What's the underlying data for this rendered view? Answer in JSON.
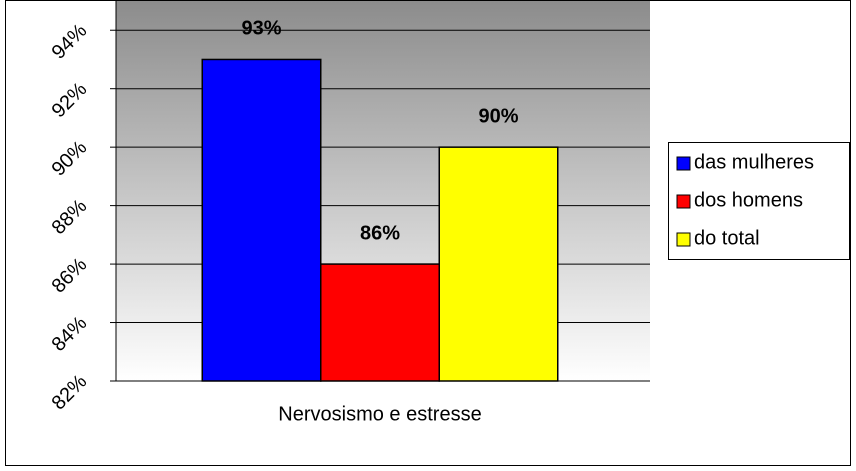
{
  "chart_data": {
    "type": "bar",
    "categories": [
      "Nervosismo e estresse"
    ],
    "series": [
      {
        "name": "das mulheres",
        "color": "#0000ff",
        "values": [
          93
        ],
        "value_labels": [
          "93%"
        ]
      },
      {
        "name": "dos homens",
        "color": "#ff0000",
        "values": [
          86
        ],
        "value_labels": [
          "86%"
        ]
      },
      {
        "name": "do total",
        "color": "#ffff00",
        "values": [
          90
        ],
        "value_labels": [
          "90%"
        ]
      }
    ],
    "ylim": [
      82,
      95
    ],
    "yticks": [
      {
        "value": 82,
        "label": "82%"
      },
      {
        "value": 84,
        "label": "84%"
      },
      {
        "value": 86,
        "label": "86%"
      },
      {
        "value": 88,
        "label": "88%"
      },
      {
        "value": 90,
        "label": "90%"
      },
      {
        "value": 92,
        "label": "92%"
      },
      {
        "value": 94,
        "label": "94%"
      }
    ],
    "grid": true,
    "legend": "right"
  }
}
